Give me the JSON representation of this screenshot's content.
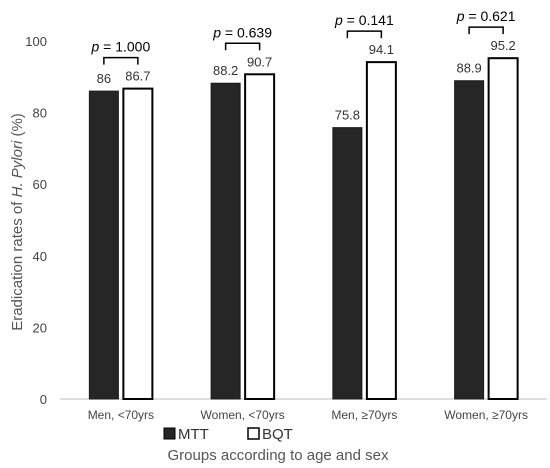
{
  "chart_data": {
    "type": "bar",
    "categories": [
      "Men, <70yrs",
      "Women, <70yrs",
      "Men, ≥70yrs",
      "Women, ≥70yrs"
    ],
    "series": [
      {
        "name": "MTT",
        "values": [
          86,
          88.2,
          75.8,
          88.9
        ],
        "color": "#262626",
        "value_labels": [
          "86",
          "88.2",
          "75.8",
          "88.9"
        ]
      },
      {
        "name": "BQT",
        "values": [
          86.7,
          90.7,
          94.1,
          95.2
        ],
        "color": "#ffffff",
        "value_labels": [
          "86.7",
          "90.7",
          "94.1",
          "95.2"
        ]
      }
    ],
    "p_values": [
      {
        "prefix": "p",
        "value": " = 1.000"
      },
      {
        "prefix": "p",
        "value": " = 0.639"
      },
      {
        "prefix": "p",
        "value": " = 0.141"
      },
      {
        "prefix": "p",
        "value": " = 0.621"
      }
    ],
    "ylabel_prefix": "Eradication rates of ",
    "ylabel_italic": "H. Pylori",
    "ylabel_suffix": " (%)",
    "xlabel": "Groups according to age and sex",
    "ylim": [
      0,
      100
    ],
    "yticks": [
      0,
      20,
      40,
      60,
      80,
      100
    ],
    "grid": false,
    "legend_position": "bottom"
  }
}
